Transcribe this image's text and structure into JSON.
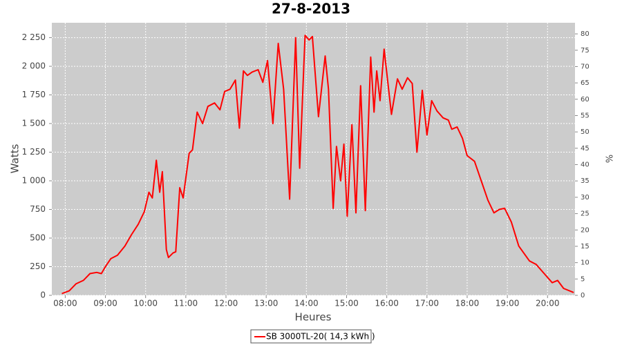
{
  "chart_data": {
    "type": "line",
    "title": "27-8-2013",
    "xlabel": "Heures",
    "ylabel": "Watts",
    "y2label": "%",
    "x": [
      "07:55",
      "08:06",
      "08:16",
      "08:27",
      "08:37",
      "08:47",
      "08:54",
      "09:00",
      "09:08",
      "09:18",
      "09:29",
      "09:39",
      "09:49",
      "09:58",
      "10:05",
      "10:10",
      "10:16",
      "10:21",
      "10:25",
      "10:31",
      "10:34",
      "10:41",
      "10:45",
      "10:51",
      "10:56",
      "11:05",
      "11:10",
      "11:17",
      "11:25",
      "11:33",
      "11:43",
      "11:51",
      "11:58",
      "12:06",
      "12:14",
      "12:20",
      "12:26",
      "12:32",
      "12:39",
      "12:48",
      "12:55",
      "13:02",
      "13:10",
      "13:18",
      "13:26",
      "13:35",
      "13:44",
      "13:50",
      "13:58",
      "14:04",
      "14:09",
      "14:18",
      "14:28",
      "14:33",
      "14:40",
      "14:45",
      "14:51",
      "14:56",
      "15:01",
      "15:08",
      "15:14",
      "15:21",
      "15:28",
      "15:36",
      "15:41",
      "15:45",
      "15:50",
      "15:56",
      "16:07",
      "16:16",
      "16:23",
      "16:31",
      "16:38",
      "16:45",
      "16:53",
      "17:00",
      "17:07",
      "17:15",
      "17:24",
      "17:32",
      "17:37",
      "17:45",
      "17:53",
      "18:00",
      "18:11",
      "18:21",
      "18:31",
      "18:40",
      "18:48",
      "18:56",
      "19:06",
      "19:17",
      "19:33",
      "19:43",
      "19:55",
      "20:07",
      "20:15",
      "20:24",
      "20:39"
    ],
    "series": [
      {
        "name": "SB 3000TL-20( 14,3 kWh )",
        "color": "#ff0000",
        "values": [
          15,
          40,
          100,
          130,
          190,
          200,
          190,
          250,
          320,
          350,
          430,
          530,
          620,
          730,
          900,
          850,
          1180,
          900,
          1080,
          400,
          330,
          370,
          380,
          940,
          850,
          1240,
          1270,
          1600,
          1500,
          1650,
          1680,
          1620,
          1780,
          1800,
          1880,
          1460,
          1960,
          1920,
          1950,
          1970,
          1860,
          2050,
          1500,
          2200,
          1800,
          840,
          2250,
          1110,
          2270,
          2230,
          2260,
          1560,
          2090,
          1800,
          760,
          1300,
          1000,
          1320,
          690,
          1490,
          720,
          1830,
          740,
          2080,
          1600,
          1960,
          1700,
          2150,
          1580,
          1890,
          1800,
          1900,
          1850,
          1250,
          1790,
          1400,
          1700,
          1610,
          1550,
          1530,
          1450,
          1470,
          1370,
          1220,
          1170,
          1000,
          830,
          720,
          750,
          760,
          640,
          430,
          300,
          270,
          190,
          110,
          130,
          60,
          25
        ]
      }
    ],
    "xlim": [
      "07:40",
      "20:41"
    ],
    "xticks": [
      "08:00",
      "09:00",
      "10:00",
      "11:00",
      "12:00",
      "13:00",
      "14:00",
      "15:00",
      "16:00",
      "17:00",
      "18:00",
      "19:00",
      "20:00"
    ],
    "ylim": [
      0,
      2380
    ],
    "yticks": [
      0,
      250,
      500,
      750,
      {
        "value": 1000,
        "label": "1 000"
      },
      {
        "value": 1250,
        "label": "1 250"
      },
      {
        "value": 1500,
        "label": "1 500"
      },
      {
        "value": 1750,
        "label": "1 750"
      },
      {
        "value": 2000,
        "label": "2 000"
      },
      {
        "value": 2250,
        "label": "2 250"
      }
    ],
    "y2lim": [
      0,
      83.4
    ],
    "y2ticks": [
      0,
      5,
      10,
      15,
      20,
      25,
      30,
      35,
      40,
      45,
      50,
      55,
      60,
      65,
      70,
      75,
      80
    ],
    "grid": true,
    "legend": "bottom"
  }
}
